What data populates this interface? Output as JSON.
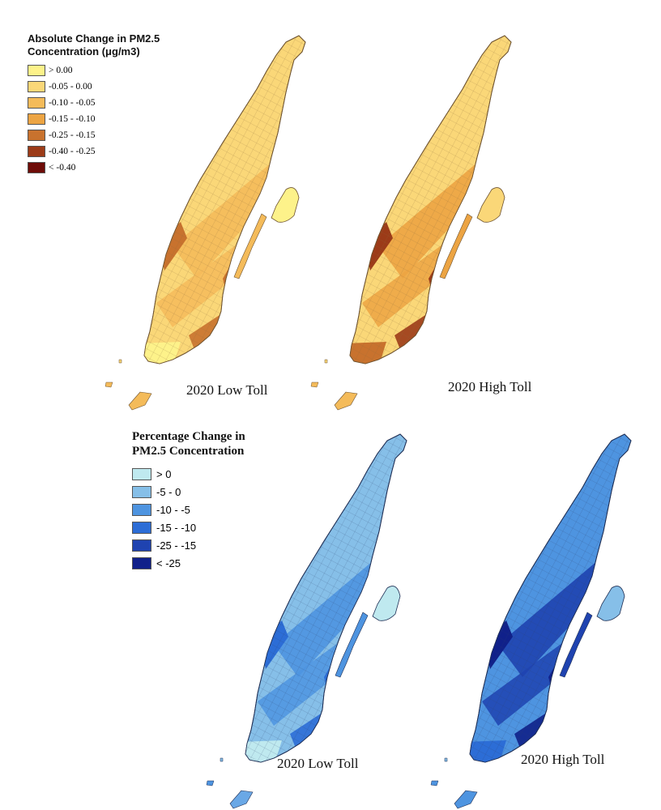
{
  "abs_legend": {
    "title": "Absolute Change in PM2.5 Concentration (μg/m3)",
    "title_line1": "Absolute Change in PM2.5",
    "title_line2": "Concentration (μg/m3)",
    "items": [
      {
        "label": "> 0.00",
        "color": "#fdf28a"
      },
      {
        "label": "-0.05 - 0.00",
        "color": "#fad778"
      },
      {
        "label": "-0.10 - -0.05",
        "color": "#f4bb5a"
      },
      {
        "label": "-0.15 - -0.10",
        "color": "#eca443"
      },
      {
        "label": "-0.25 - -0.15",
        "color": "#c8722e"
      },
      {
        "label": "-0.40 - -0.25",
        "color": "#9c3b18"
      },
      {
        "label": "< -0.40",
        "color": "#6e0c08"
      }
    ]
  },
  "pct_legend": {
    "title": "Percentage Change in PM2.5 Concentration",
    "title_line1": "Percentage Change in",
    "title_line2": "PM2.5 Concentration",
    "items": [
      {
        "label": "> 0",
        "color": "#bfe9ef"
      },
      {
        "label": "-5 - 0",
        "color": "#86bfe8"
      },
      {
        "label": "-10 - -5",
        "color": "#4e94e0"
      },
      {
        "label": "-15 - -10",
        "color": "#2c6dd6"
      },
      {
        "label": "-25 - -15",
        "color": "#1f43b0"
      },
      {
        "label": "< -25",
        "color": "#10208a"
      }
    ]
  },
  "maps": [
    {
      "label": "2020 Low Toll",
      "metric": "absolute",
      "base_color": "#fad778",
      "mid_color": "#f4bb5a",
      "hot_color": "#c8722e",
      "south_color": "#fdf28a"
    },
    {
      "label": "2020 High Toll",
      "metric": "absolute",
      "base_color": "#fad778",
      "mid_color": "#eca443",
      "hot_color": "#9c3b18",
      "south_color": "#c8722e"
    },
    {
      "label": "2020 Low Toll",
      "metric": "percentage",
      "base_color": "#86bfe8",
      "mid_color": "#4e94e0",
      "hot_color": "#2c6dd6",
      "south_color": "#bfe9ef"
    },
    {
      "label": "2020 High Toll",
      "metric": "percentage",
      "base_color": "#4e94e0",
      "mid_color": "#1f43b0",
      "hot_color": "#10208a",
      "south_color": "#2c6dd6"
    }
  ]
}
